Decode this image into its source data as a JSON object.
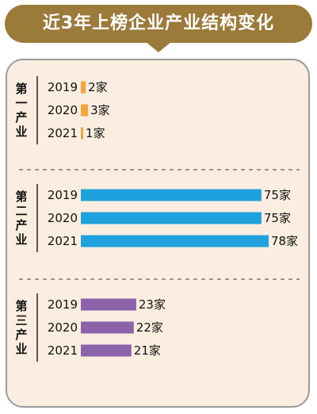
{
  "title": "近3年上榜企业产业结构变化",
  "chart_data": {
    "type": "bar",
    "orientation": "horizontal",
    "unit": "家",
    "groups": [
      {
        "name": "第一产业",
        "color": "#f5a43c",
        "rows": [
          {
            "year": "2019",
            "value": 2,
            "label": "2家"
          },
          {
            "year": "2020",
            "value": 3,
            "label": "3家"
          },
          {
            "year": "2021",
            "value": 1,
            "label": "1家"
          }
        ]
      },
      {
        "name": "第二产业",
        "color": "#1ea1dc",
        "rows": [
          {
            "year": "2019",
            "value": 75,
            "label": "75家"
          },
          {
            "year": "2020",
            "value": 75,
            "label": "75家"
          },
          {
            "year": "2021",
            "value": 78,
            "label": "78家"
          }
        ]
      },
      {
        "name": "第三产业",
        "color": "#8c62aa",
        "rows": [
          {
            "year": "2019",
            "value": 23,
            "label": "23家"
          },
          {
            "year": "2020",
            "value": 22,
            "label": "22家"
          },
          {
            "year": "2021",
            "value": 21,
            "label": "21家"
          }
        ]
      }
    ]
  }
}
